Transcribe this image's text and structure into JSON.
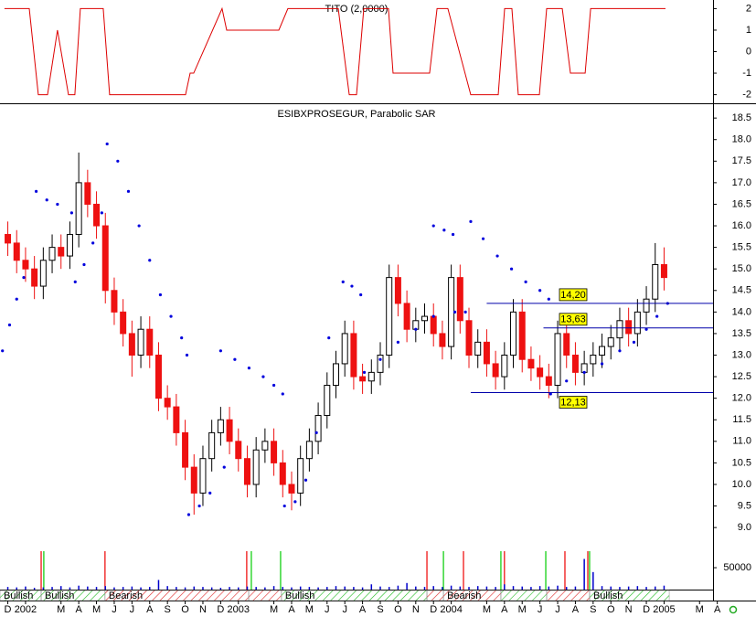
{
  "chart_data": [
    {
      "type": "line",
      "title": "TITO (2,0000)",
      "color": "#dd0000",
      "xlim": [
        -1.44,
        38.76
      ],
      "ylim": [
        -2.4,
        2.4
      ],
      "yticks": [
        2,
        1,
        0,
        -1,
        -2
      ],
      "x": [
        -1.19,
        0.21,
        0.72,
        1.24,
        1.8,
        2.42,
        2.78,
        3.09,
        4.38,
        4.74,
        9.02,
        9.28,
        9.48,
        11.08,
        11.34,
        14.28,
        14.79,
        17.63,
        18.25,
        18.66,
        19.07,
        20.46,
        20.72,
        22.78,
        23.2,
        23.81,
        25.1,
        26.65,
        27.01,
        27.42,
        27.78,
        28.97,
        29.38,
        30.26,
        30.72,
        31.55,
        31.86,
        36.08
      ],
      "values": [
        2,
        2,
        -2,
        -2,
        1,
        -2,
        -2,
        2,
        2,
        -2,
        -2,
        -1,
        -1,
        2,
        1,
        1,
        2,
        2,
        -2,
        -2,
        2,
        2,
        -1,
        -1,
        2,
        2,
        -2,
        -2,
        2,
        2,
        -2,
        -2,
        2,
        2,
        -1,
        -1,
        2,
        2
      ]
    },
    {
      "type": "candlestick",
      "title": "ESIBXPROSEGUR, Parabolic SAR",
      "up_color": "#ffffff",
      "down_color": "#ee1111",
      "xlim": [
        -1.44,
        38.76
      ],
      "ylim": [
        8.6,
        18.8
      ],
      "yticks": [
        {
          "value": 9,
          "label": "9.0"
        },
        9.5,
        {
          "value": 10,
          "label": "10.0"
        },
        10.5,
        {
          "value": 11,
          "label": "11.0"
        },
        11.5,
        {
          "value": 12,
          "label": "12.0"
        },
        12.5,
        {
          "value": 13,
          "label": "13.0"
        },
        13.5,
        {
          "value": 14,
          "label": "14.0"
        },
        14.5,
        {
          "value": 15,
          "label": "15.0"
        },
        15.5,
        {
          "value": 16,
          "label": "16.0"
        },
        16.5,
        {
          "value": 17,
          "label": "17.0"
        },
        17.5,
        {
          "value": 18,
          "label": "18.0"
        },
        18.5
      ],
      "candles": {
        "x": [
          -1,
          -0.5,
          0,
          0.5,
          1,
          1.5,
          2,
          2.5,
          3,
          3.5,
          4,
          4.5,
          5,
          5.5,
          6,
          6.5,
          7,
          7.5,
          8,
          8.5,
          9,
          9.5,
          10,
          10.5,
          11,
          11.5,
          12,
          12.5,
          13,
          13.5,
          14,
          14.5,
          15,
          15.5,
          16,
          16.5,
          17,
          17.5,
          18,
          18.5,
          19,
          19.5,
          20,
          20.5,
          21,
          21.5,
          22,
          22.5,
          23,
          23.5,
          24,
          24.5,
          25,
          25.5,
          26,
          26.5,
          27,
          27.5,
          28,
          28.5,
          29,
          29.5,
          30,
          30.5,
          31,
          31.5,
          32,
          32.5,
          33,
          33.5,
          34,
          34.5,
          35,
          35.5,
          36
        ],
        "open": [
          15.8,
          15.6,
          15.2,
          15.0,
          14.6,
          15.2,
          15.5,
          15.3,
          15.8,
          17.0,
          16.5,
          16.0,
          14.5,
          14.0,
          13.5,
          13.0,
          13.6,
          13.0,
          12.0,
          11.8,
          11.2,
          10.4,
          9.8,
          10.6,
          11.2,
          11.5,
          11.0,
          10.6,
          10.0,
          10.8,
          11.0,
          10.5,
          10.0,
          9.8,
          10.6,
          11.0,
          11.6,
          12.3,
          12.8,
          13.5,
          12.5,
          12.4,
          12.6,
          13.0,
          14.8,
          14.2,
          13.6,
          13.8,
          13.9,
          13.5,
          13.2,
          14.8,
          13.8,
          13.0,
          13.3,
          12.8,
          12.5,
          13.0,
          14.0,
          12.9,
          12.7,
          12.5,
          12.3,
          13.5,
          13.0,
          12.6,
          12.8,
          13.0,
          13.2,
          13.4,
          13.8,
          13.5,
          14.0,
          14.3,
          15.1
        ],
        "high": [
          16.1,
          15.9,
          15.5,
          15.3,
          15.5,
          15.8,
          15.8,
          16.1,
          17.7,
          17.3,
          16.8,
          16.3,
          14.8,
          14.3,
          13.8,
          13.9,
          13.9,
          13.3,
          12.3,
          12.1,
          11.5,
          10.7,
          10.9,
          11.5,
          11.8,
          11.8,
          11.3,
          10.9,
          11.1,
          11.3,
          11.3,
          10.8,
          10.3,
          10.9,
          11.3,
          11.9,
          12.6,
          13.1,
          13.8,
          13.8,
          12.8,
          12.9,
          13.3,
          15.1,
          15.1,
          14.5,
          14.1,
          14.2,
          14.2,
          13.8,
          15.1,
          15.1,
          14.1,
          13.6,
          13.6,
          13.1,
          13.3,
          14.3,
          14.3,
          13.2,
          13.0,
          12.8,
          13.8,
          13.8,
          13.3,
          13.1,
          13.3,
          13.5,
          13.7,
          14.1,
          14.1,
          14.3,
          14.6,
          15.6,
          15.5
        ],
        "low": [
          15.3,
          14.9,
          14.7,
          14.3,
          14.3,
          14.9,
          15.0,
          15.0,
          15.5,
          16.2,
          15.7,
          14.2,
          13.7,
          13.2,
          12.5,
          12.7,
          12.7,
          11.7,
          11.5,
          10.9,
          10.1,
          9.3,
          9.5,
          10.3,
          10.9,
          10.7,
          10.3,
          9.7,
          9.7,
          10.5,
          10.2,
          9.7,
          9.4,
          9.5,
          10.3,
          10.7,
          11.3,
          12.0,
          12.5,
          12.2,
          12.1,
          12.1,
          12.3,
          12.7,
          13.9,
          13.3,
          13.3,
          13.5,
          13.2,
          12.9,
          12.9,
          13.5,
          12.7,
          12.7,
          12.5,
          12.2,
          12.2,
          12.7,
          12.6,
          12.4,
          12.2,
          12.0,
          12.0,
          12.7,
          12.3,
          12.3,
          12.5,
          12.7,
          12.9,
          13.1,
          13.2,
          13.2,
          13.7,
          14.0,
          14.5
        ],
        "close": [
          15.6,
          15.2,
          15.0,
          14.6,
          15.2,
          15.5,
          15.3,
          15.8,
          17.0,
          16.5,
          16.0,
          14.5,
          14.0,
          13.5,
          13.0,
          13.6,
          13.0,
          12.0,
          11.8,
          11.2,
          10.4,
          9.8,
          10.6,
          11.2,
          11.5,
          11.0,
          10.6,
          10.0,
          10.8,
          11.0,
          10.5,
          10.0,
          9.8,
          10.6,
          11.0,
          11.6,
          12.3,
          12.8,
          13.5,
          12.5,
          12.4,
          12.6,
          13.0,
          14.8,
          14.2,
          13.6,
          13.8,
          13.9,
          13.5,
          13.2,
          14.8,
          13.8,
          13.0,
          13.3,
          12.8,
          12.5,
          13.0,
          14.0,
          12.9,
          12.7,
          12.5,
          12.3,
          13.5,
          13.0,
          12.6,
          12.8,
          13.0,
          13.2,
          13.4,
          13.8,
          13.5,
          14.0,
          14.3,
          15.1,
          14.8
        ]
      },
      "sar": {
        "color": "#0000dd",
        "x": [
          -1.3,
          -0.9,
          -0.5,
          -0.1,
          0.6,
          1.2,
          1.8,
          2.6,
          2.8,
          3.3,
          3.8,
          4.3,
          4.6,
          5.2,
          5.8,
          6.4,
          7.0,
          7.6,
          8.2,
          8.8,
          9.1,
          9.2,
          9.8,
          10.4,
          11.2,
          11.0,
          11.8,
          12.6,
          13.4,
          14.0,
          14.5,
          14.6,
          15.2,
          15.8,
          16.4,
          17.1,
          17.9,
          18.4,
          18.9,
          19.1,
          20.0,
          21.0,
          22.0,
          23.0,
          23.0,
          23.6,
          24.1,
          24.2,
          24.8,
          25.1,
          25.8,
          26.6,
          27.4,
          28.2,
          29.0,
          29.5,
          29.6,
          30.5,
          31.5,
          32.5,
          33.5,
          34.3,
          35.0,
          35.6,
          36.2
        ],
        "values": [
          13.1,
          13.7,
          14.3,
          14.8,
          16.8,
          16.6,
          16.5,
          16.3,
          14.7,
          15.1,
          15.6,
          16.3,
          17.9,
          17.5,
          16.8,
          16.0,
          15.2,
          14.4,
          13.9,
          13.4,
          13.0,
          9.3,
          9.5,
          9.8,
          10.4,
          13.1,
          12.9,
          12.7,
          12.5,
          12.3,
          12.1,
          9.5,
          9.6,
          10.1,
          11.2,
          13.4,
          14.7,
          14.6,
          14.4,
          12.6,
          12.9,
          13.3,
          13.6,
          13.9,
          16.0,
          15.9,
          15.8,
          14.0,
          14.0,
          16.1,
          15.7,
          15.3,
          15.0,
          14.7,
          14.5,
          14.3,
          12.1,
          12.4,
          12.6,
          12.8,
          13.1,
          13.3,
          13.6,
          13.9,
          14.2
        ]
      },
      "levels": {
        "color": "#0000aa",
        "box_color": "#ffff00",
        "items": [
          {
            "value": 14.2,
            "label": "14,20",
            "x0": 26.0
          },
          {
            "value": 13.63,
            "label": "13,63",
            "x0": 29.2
          },
          {
            "value": 12.13,
            "label": "12,13",
            "x0": 25.1
          }
        ]
      }
    },
    {
      "type": "bar",
      "color": "#0000cc",
      "xlim": [
        -1.44,
        38.76
      ],
      "ylim": [
        0,
        94000
      ],
      "yticks": [
        50000
      ],
      "x": [
        -1,
        -0.5,
        0,
        0.5,
        1,
        1.5,
        2,
        2.5,
        3,
        3.5,
        4,
        4.5,
        5,
        5.5,
        6,
        6.5,
        7,
        7.5,
        8,
        8.5,
        9,
        9.5,
        10,
        10.5,
        11,
        11.5,
        12,
        12.5,
        13,
        13.5,
        14,
        14.5,
        15,
        15.5,
        16,
        16.5,
        17,
        17.5,
        18,
        18.5,
        19,
        19.5,
        20,
        20.5,
        21,
        21.5,
        22,
        22.5,
        23,
        23.5,
        24,
        24.5,
        25,
        25.5,
        26,
        26.5,
        27,
        27.5,
        28,
        28.5,
        29,
        29.5,
        30,
        30.5,
        31,
        31.5,
        32,
        32.5,
        33,
        33.5,
        34,
        34.5,
        35,
        35.5,
        36
      ],
      "values": [
        6000,
        5000,
        7000,
        4000,
        5000,
        6000,
        8000,
        5000,
        9000,
        7000,
        6000,
        8000,
        5000,
        6000,
        7000,
        5000,
        6000,
        22000,
        8000,
        6000,
        5000,
        7000,
        6000,
        5000,
        4000,
        6000,
        5000,
        7000,
        6000,
        5000,
        8000,
        6000,
        5000,
        7000,
        6000,
        5000,
        6000,
        8000,
        7000,
        6000,
        5000,
        12000,
        7000,
        6000,
        9000,
        15000,
        7000,
        6000,
        8000,
        6000,
        9000,
        7000,
        6000,
        8000,
        7000,
        6000,
        12000,
        8000,
        7000,
        6000,
        8000,
        7000,
        9000,
        6000,
        7000,
        70000,
        40000,
        8000,
        7000,
        6000,
        7000,
        8000,
        6000,
        7000,
        9000
      ],
      "signals": {
        "x": [
          0.88,
          1.03,
          4.48,
          12.47,
          12.73,
          14.38,
          22.63,
          23.56,
          24.69,
          26.8,
          27.0,
          29.33,
          30.41,
          31.7,
          31.8
        ],
        "color": [
          "#ee0000",
          "#00cc00",
          "#ee0000",
          "#ee0000",
          "#00cc00",
          "#00cc00",
          "#ee0000",
          "#00cc00",
          "#ee0000",
          "#00cc00",
          "#ee0000",
          "#00cc00",
          "#ee0000",
          "#ee0000",
          "#00cc00"
        ]
      },
      "bands": [
        {
          "start": -1.44,
          "end": 0.88,
          "color": "#22bb22",
          "label": "Bullish"
        },
        {
          "start": 0.88,
          "end": 4.48,
          "color": "#22bb22",
          "label": "Bullish"
        },
        {
          "start": 4.48,
          "end": 12.58,
          "color": "#dd2222",
          "label": "Bearish"
        },
        {
          "start": 12.58,
          "end": 14.43,
          "color": "#dd2222"
        },
        {
          "start": 14.43,
          "end": 22.63,
          "color": "#22bb22",
          "label": "Bullish"
        },
        {
          "start": 22.63,
          "end": 23.56,
          "color": "#dd2222"
        },
        {
          "start": 23.56,
          "end": 26.8,
          "color": "#dd2222",
          "label": "Bearish"
        },
        {
          "start": 26.8,
          "end": 29.38,
          "color": "#22bb22"
        },
        {
          "start": 29.38,
          "end": 31.8,
          "color": "#dd2222"
        },
        {
          "start": 31.8,
          "end": 36.29,
          "color": "#22bb22",
          "label": "Bullish"
        }
      ],
      "xticks": [
        {
          "value": -1,
          "label": "D"
        },
        {
          "value": 0,
          "label": "2002"
        },
        {
          "value": 2,
          "label": "M"
        },
        {
          "value": 3,
          "label": "A"
        },
        {
          "value": 4,
          "label": "M"
        },
        {
          "value": 5,
          "label": "J"
        },
        {
          "value": 6,
          "label": "J"
        },
        {
          "value": 7,
          "label": "A"
        },
        {
          "value": 8,
          "label": "S"
        },
        {
          "value": 9,
          "label": "O"
        },
        {
          "value": 10,
          "label": "N"
        },
        {
          "value": 11,
          "label": "D"
        },
        {
          "value": 12,
          "label": "2003"
        },
        {
          "value": 14,
          "label": "M"
        },
        {
          "value": 15,
          "label": "A"
        },
        {
          "value": 16,
          "label": "M"
        },
        {
          "value": 17,
          "label": "J"
        },
        {
          "value": 18,
          "label": "J"
        },
        {
          "value": 19,
          "label": "A"
        },
        {
          "value": 20,
          "label": "S"
        },
        {
          "value": 21,
          "label": "O"
        },
        {
          "value": 22,
          "label": "N"
        },
        {
          "value": 23,
          "label": "D"
        },
        {
          "value": 24,
          "label": "2004"
        },
        {
          "value": 26,
          "label": "M"
        },
        {
          "value": 27,
          "label": "A"
        },
        {
          "value": 28,
          "label": "M"
        },
        {
          "value": 29,
          "label": "J"
        },
        {
          "value": 30,
          "label": "J"
        },
        {
          "value": 31,
          "label": "A"
        },
        {
          "value": 32,
          "label": "S"
        },
        {
          "value": 33,
          "label": "O"
        },
        {
          "value": 34,
          "label": "N"
        },
        {
          "value": 35,
          "label": "D"
        },
        {
          "value": 36,
          "label": "2005"
        },
        {
          "value": 38,
          "label": "M"
        },
        {
          "value": 39,
          "label": "A"
        }
      ]
    }
  ]
}
